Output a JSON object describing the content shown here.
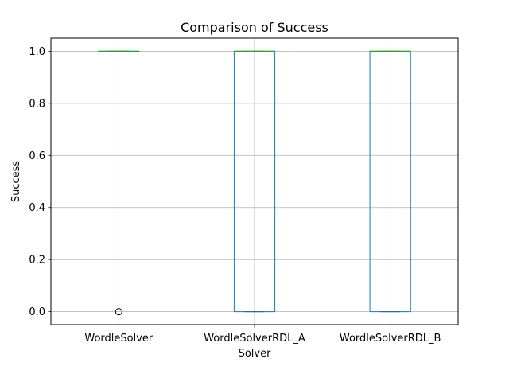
{
  "chart_data": {
    "type": "box",
    "title": "Comparison of Success",
    "xlabel": "Solver",
    "ylabel": "Success",
    "ylim": [
      -0.05,
      1.05
    ],
    "yticks": [
      0.0,
      0.2,
      0.4,
      0.6,
      0.8,
      1.0
    ],
    "ytick_labels": [
      "0.0",
      "0.2",
      "0.4",
      "0.6",
      "0.8",
      "1.0"
    ],
    "grid": true,
    "categories": [
      "WordleSolver",
      "WordleSolverRDL_A",
      "WordleSolverRDL_B"
    ],
    "boxes": [
      {
        "category": "WordleSolver",
        "q1": 1.0,
        "median": 1.0,
        "q3": 1.0,
        "whisker_low": 1.0,
        "whisker_high": 1.0,
        "outliers": [
          0.0
        ]
      },
      {
        "category": "WordleSolverRDL_A",
        "q1": 0.0,
        "median": 1.0,
        "q3": 1.0,
        "whisker_low": 0.0,
        "whisker_high": 1.0,
        "outliers": []
      },
      {
        "category": "WordleSolverRDL_B",
        "q1": 0.0,
        "median": 1.0,
        "q3": 1.0,
        "whisker_low": 0.0,
        "whisker_high": 1.0,
        "outliers": []
      }
    ],
    "colors": {
      "box": "#1f77b4",
      "median": "#2ca02c",
      "whisker": "#000000",
      "grid": "#b0b0b0",
      "outlier": "#000000"
    }
  }
}
